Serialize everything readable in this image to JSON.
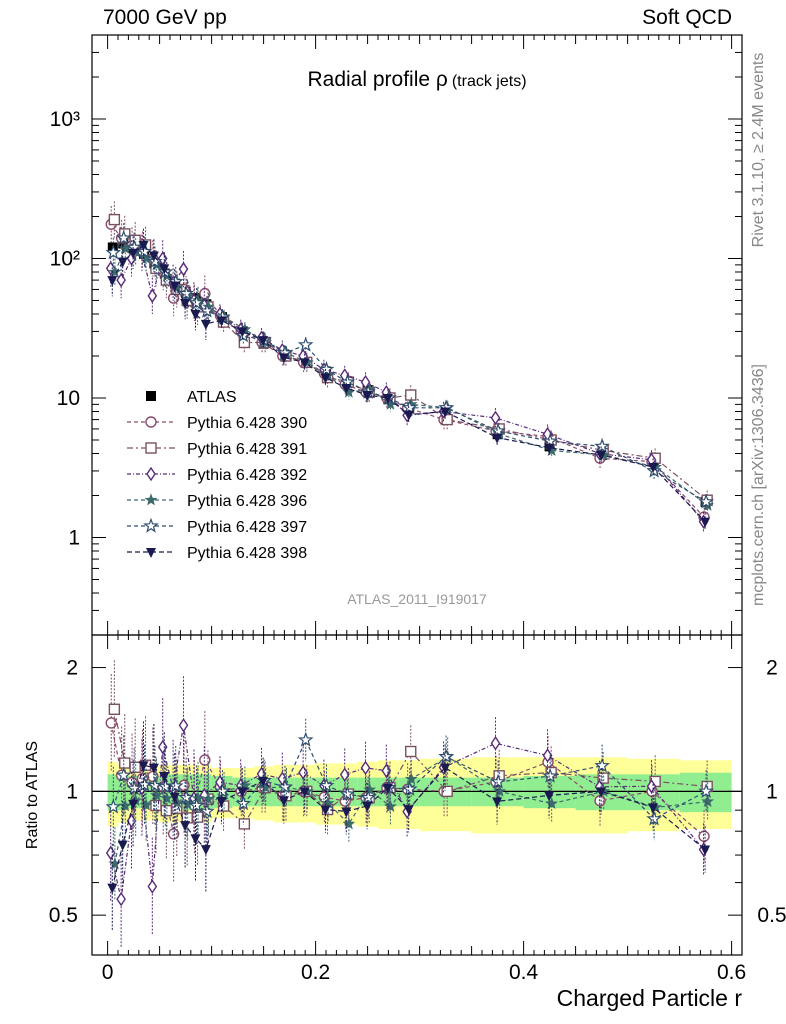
{
  "header": {
    "left_label": "7000 GeV pp",
    "right_label": "Soft QCD"
  },
  "side_labels": {
    "rivet": "Rivet 3.1.10, ≥ 2.4M events",
    "mcplots": "mcplots.cern.ch [arXiv:1306.3436]"
  },
  "analysis_id": "ATLAS_2011_I919017",
  "colors": {
    "band_inner": "#90ee90",
    "band_outer": "#ffff99",
    "atlas": "#000000"
  },
  "chart_data": {
    "type": "scatter",
    "title": "Radial profile ρ",
    "title_suffix": "(track jets)",
    "xlabel": "Charged Particle r",
    "ylabel_ratio": "Ratio to ATLAS",
    "xlim": [
      -0.015,
      0.61
    ],
    "main": {
      "yscale": "log",
      "ylim": [
        0.2,
        4000
      ],
      "y_tick_labels": [
        "10³",
        "10²",
        "10",
        "1"
      ]
    },
    "ratio": {
      "yscale": "log",
      "ylim": [
        0.4,
        2.4
      ],
      "y_tick_labels": [
        "2",
        "1",
        "0.5"
      ]
    },
    "x_tick_labels": [
      "0",
      "0.2",
      "0.4",
      "0.6"
    ],
    "x": [
      0.005,
      0.015,
      0.025,
      0.035,
      0.045,
      0.055,
      0.065,
      0.075,
      0.085,
      0.095,
      0.11,
      0.13,
      0.15,
      0.17,
      0.19,
      0.21,
      0.23,
      0.25,
      0.27,
      0.29,
      0.325,
      0.375,
      0.425,
      0.475,
      0.525,
      0.575
    ],
    "bin_edges": [
      0,
      0.01,
      0.02,
      0.03,
      0.04,
      0.05,
      0.06,
      0.07,
      0.08,
      0.09,
      0.1,
      0.12,
      0.14,
      0.16,
      0.18,
      0.2,
      0.22,
      0.24,
      0.26,
      0.28,
      0.3,
      0.35,
      0.4,
      0.45,
      0.5,
      0.55,
      0.6
    ],
    "band_inner": [
      0.1,
      0.1,
      0.09,
      0.09,
      0.09,
      0.1,
      0.1,
      0.1,
      0.1,
      0.1,
      0.09,
      0.08,
      0.08,
      0.08,
      0.08,
      0.08,
      0.08,
      0.08,
      0.08,
      0.08,
      0.08,
      0.08,
      0.09,
      0.1,
      0.1,
      0.11
    ],
    "band_outer": [
      0.18,
      0.16,
      0.15,
      0.15,
      0.15,
      0.16,
      0.16,
      0.16,
      0.16,
      0.16,
      0.14,
      0.14,
      0.15,
      0.16,
      0.16,
      0.17,
      0.17,
      0.18,
      0.19,
      0.19,
      0.2,
      0.21,
      0.21,
      0.21,
      0.2,
      0.19
    ],
    "series": [
      {
        "name": "ATLAS",
        "marker": "square-filled",
        "color": "#000000",
        "values": [
          120,
          128,
          118,
          108,
          92,
          78,
          66,
          58,
          52,
          47,
          38,
          30,
          24.5,
          20.5,
          18,
          15.5,
          13.2,
          11.4,
          9.8,
          8.4,
          7.0,
          5.5,
          4.5,
          3.9,
          3.5,
          1.8
        ]
      },
      {
        "name": "Pythia 6.428 390",
        "marker": "circle-open",
        "color": "#8b4a6b",
        "values": [
          176,
          140,
          124,
          116,
          100,
          80,
          52,
          60,
          48,
          56,
          39,
          30,
          25,
          20,
          18,
          15,
          12.5,
          11,
          10,
          8.5,
          7,
          5.8,
          5.3,
          3.7,
          3.5,
          1.4
        ]
      },
      {
        "name": "Pythia 6.428 391",
        "marker": "square-open",
        "color": "#7a5060",
        "values": [
          190,
          150,
          135,
          125,
          85,
          70,
          60,
          50,
          45,
          45,
          35,
          25,
          25,
          20,
          18,
          14,
          13,
          11,
          10,
          10.5,
          7,
          6,
          5,
          4.2,
          3.7,
          1.85
        ]
      },
      {
        "name": "Pythia 6.428 392",
        "marker": "diamond-open",
        "color": "#5a2a7a",
        "values": [
          85,
          70,
          100,
          110,
          54,
          100,
          67,
          84,
          50,
          46,
          40,
          31,
          27,
          22,
          20,
          16,
          14.5,
          13,
          11,
          7.5,
          8,
          7.2,
          5.5,
          4,
          3.6,
          1.3
        ]
      },
      {
        "name": "Pythia 6.428 396",
        "marker": "star-small",
        "color": "#3d6a6a",
        "values": [
          80,
          118,
          112,
          100,
          90,
          75,
          62,
          54,
          50,
          45,
          38,
          31,
          25,
          21,
          18,
          14.5,
          11,
          11.5,
          9,
          9,
          8.5,
          5.5,
          4.2,
          3.9,
          3.2,
          1.7
        ]
      },
      {
        "name": "Pythia 6.428 397",
        "marker": "star",
        "color": "#2e4e6e",
        "values": [
          110,
          140,
          120,
          112,
          95,
          80,
          68,
          56,
          48,
          42,
          38,
          28,
          26,
          21,
          24,
          16,
          13,
          11,
          10,
          8.5,
          8.5,
          5.8,
          4.9,
          4.5,
          3.0,
          1.8
        ]
      },
      {
        "name": "Pythia 6.428 398",
        "marker": "triangle-down-filled",
        "color": "#1a1a50",
        "values": [
          70,
          95,
          110,
          125,
          105,
          85,
          64,
          48,
          40,
          34,
          36,
          30,
          26,
          19.5,
          18,
          14,
          11.8,
          10.5,
          10,
          7.6,
          8,
          5.2,
          4.4,
          3.9,
          3.2,
          1.3
        ]
      }
    ]
  }
}
